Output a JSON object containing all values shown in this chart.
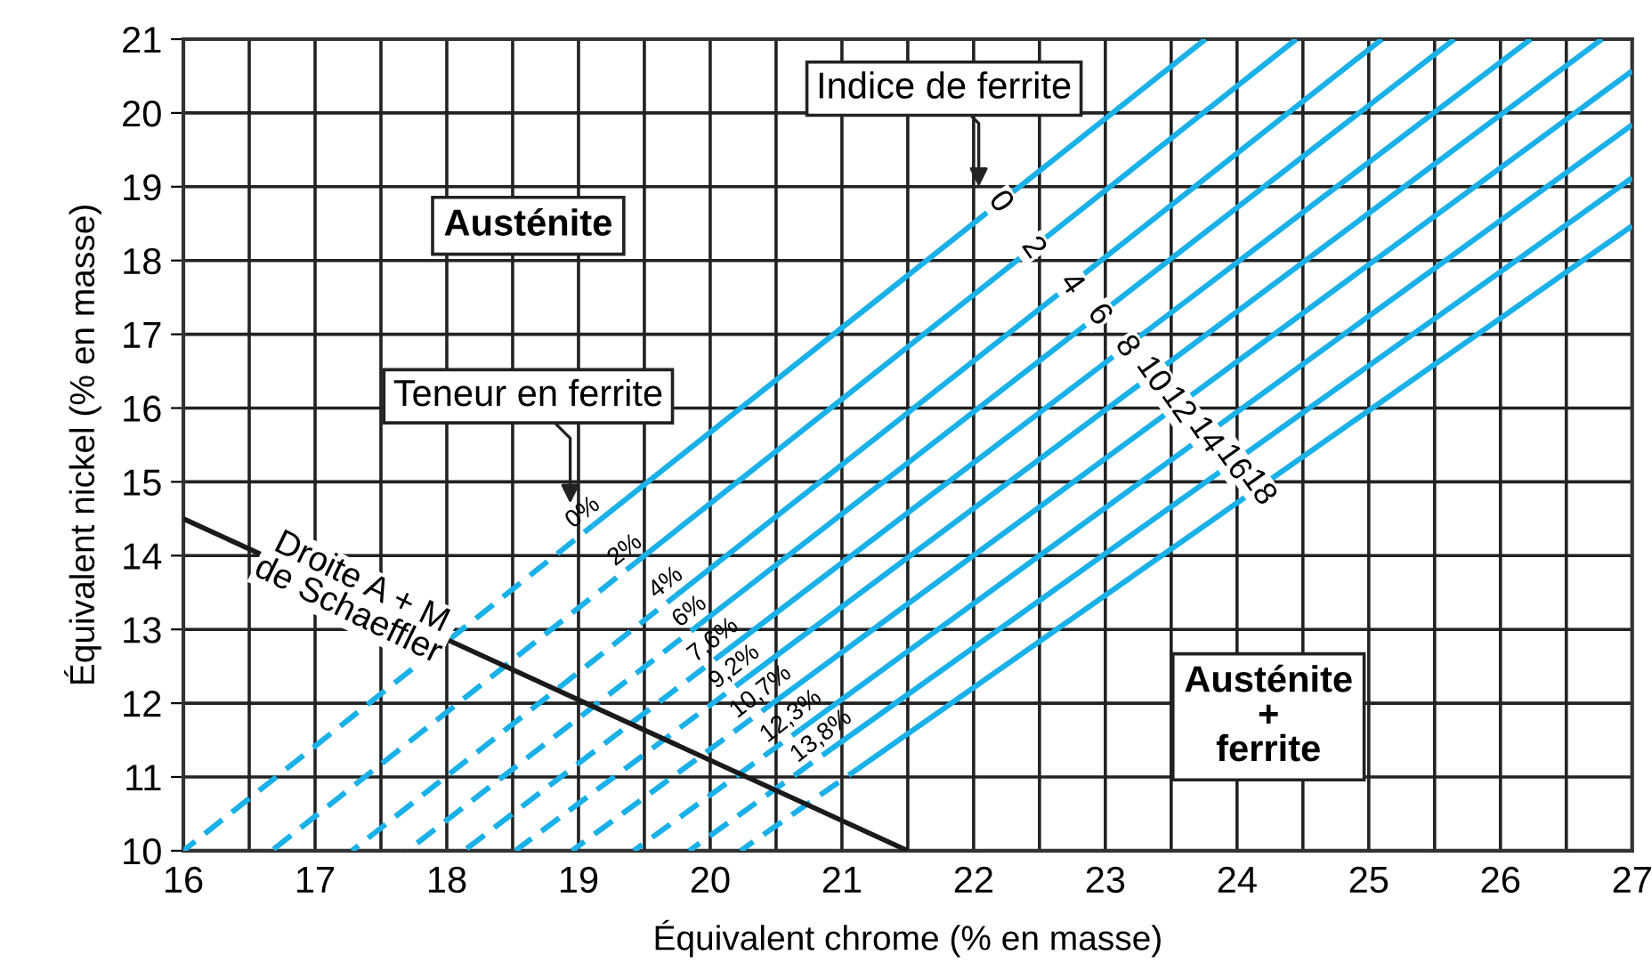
{
  "chart_data": {
    "type": "line",
    "xlabel": "Équivalent chrome (% en masse)",
    "ylabel": "Équivalent nickel (% en masse)",
    "xlim": [
      16,
      27
    ],
    "ylim": [
      10,
      21
    ],
    "xticks": [
      16,
      {
        "value": 16.5,
        "label": null
      },
      17,
      {
        "value": 17.5,
        "label": null
      },
      18,
      {
        "value": 18.5,
        "label": null
      },
      19,
      {
        "value": 19.5,
        "label": null
      },
      20,
      {
        "value": 20.5,
        "label": null
      },
      21,
      {
        "value": 21.5,
        "label": null
      },
      22,
      {
        "value": 22.5,
        "label": null
      },
      23,
      {
        "value": 23.5,
        "label": null
      },
      24,
      {
        "value": 24.5,
        "label": null
      },
      25,
      {
        "value": 25.5,
        "label": null
      },
      26,
      {
        "value": 26.5,
        "label": null
      },
      27
    ],
    "yticks": [
      10,
      11,
      12,
      13,
      14,
      15,
      16,
      17,
      18,
      19,
      20,
      21
    ],
    "grid": true,
    "legend": false,
    "series": [
      {
        "color": "#1ab0e8",
        "line_style": "dashed",
        "x": [
          16,
          19.11
        ],
        "values": [
          10,
          14.41
        ]
      },
      {
        "color": "#1ab0e8",
        "line_style": "solid",
        "x": [
          19.11,
          23.76
        ],
        "values": [
          14.41,
          21
        ]
      },
      {
        "color": "#1ab0e8",
        "line_style": "dashed",
        "x": [
          16.67,
          19.43
        ],
        "values": [
          10,
          13.9
        ]
      },
      {
        "color": "#1ab0e8",
        "line_style": "solid",
        "x": [
          19.43,
          24.45
        ],
        "values": [
          13.9,
          21
        ]
      },
      {
        "color": "#1ab0e8",
        "line_style": "dashed",
        "x": [
          17.28,
          19.74
        ],
        "values": [
          10,
          13.46
        ]
      },
      {
        "color": "#1ab0e8",
        "line_style": "solid",
        "x": [
          19.74,
          25.1
        ],
        "values": [
          13.46,
          21
        ]
      },
      {
        "color": "#1ab0e8",
        "line_style": "dashed",
        "x": [
          17.7,
          19.92
        ],
        "values": [
          10,
          13.07
        ]
      },
      {
        "color": "#1ab0e8",
        "line_style": "solid",
        "x": [
          19.92,
          25.65
        ],
        "values": [
          13.07,
          21
        ]
      },
      {
        "color": "#1ab0e8",
        "line_style": "dashed",
        "x": [
          18.13,
          20.1
        ],
        "values": [
          10,
          12.68
        ]
      },
      {
        "color": "#1ab0e8",
        "line_style": "solid",
        "x": [
          20.1,
          26.23
        ],
        "values": [
          12.68,
          21
        ]
      },
      {
        "color": "#1ab0e8",
        "line_style": "dashed",
        "x": [
          18.52,
          20.26
        ],
        "values": [
          10,
          12.32
        ]
      },
      {
        "color": "#1ab0e8",
        "line_style": "solid",
        "x": [
          20.26,
          26.77
        ],
        "values": [
          12.32,
          21
        ]
      },
      {
        "color": "#1ab0e8",
        "line_style": "dashed",
        "x": [
          18.95,
          20.46
        ],
        "values": [
          10,
          11.98
        ]
      },
      {
        "color": "#1ab0e8",
        "line_style": "solid",
        "x": [
          20.46,
          27
        ],
        "values": [
          11.98,
          20.57
        ]
      },
      {
        "color": "#1ab0e8",
        "line_style": "dashed",
        "x": [
          19.42,
          20.69
        ],
        "values": [
          10,
          11.65
        ]
      },
      {
        "color": "#1ab0e8",
        "line_style": "solid",
        "x": [
          20.69,
          27
        ],
        "values": [
          11.65,
          19.84
        ]
      },
      {
        "color": "#1ab0e8",
        "line_style": "dashed",
        "x": [
          19.84,
          20.92
        ],
        "values": [
          10,
          11.38
        ]
      },
      {
        "color": "#1ab0e8",
        "line_style": "solid",
        "x": [
          20.92,
          27
        ],
        "values": [
          11.38,
          19.12
        ]
      },
      {
        "color": "#1ab0e8",
        "line_style": "dashed",
        "x": [
          20.23,
          21.12
        ],
        "values": [
          10,
          11.11
        ]
      },
      {
        "color": "#1ab0e8",
        "line_style": "solid",
        "x": [
          21.12,
          27
        ],
        "values": [
          11.11,
          18.47
        ]
      },
      {
        "color": "#1a1a1a",
        "line_style": "solid",
        "x": [
          16,
          21.5
        ],
        "values": [
          14.5,
          10
        ]
      }
    ],
    "annotations": [
      "Austénite",
      "Teneur en ferrite",
      "Indice de ferrite",
      "Austénite\n+\nferrite",
      {
        "text": "Droite A + M\nde Schaeffler",
        "x": 17.3,
        "y": 13.44
      },
      {
        "text": "0",
        "x": 22.2,
        "y": 18.79
      },
      {
        "text": "2",
        "x": 22.45,
        "y": 18.17
      },
      {
        "text": "4",
        "x": 22.74,
        "y": 17.68
      },
      {
        "text": "6",
        "x": 22.95,
        "y": 17.26
      },
      {
        "text": "8",
        "x": 23.16,
        "y": 16.83
      },
      {
        "text": "10",
        "x": 23.36,
        "y": 16.45
      },
      {
        "text": "12",
        "x": 23.55,
        "y": 16.04
      },
      {
        "text": "14",
        "x": 23.76,
        "y": 15.63
      },
      {
        "text": "16",
        "x": 23.97,
        "y": 15.26
      },
      {
        "text": "18",
        "x": 24.16,
        "y": 14.92
      },
      {
        "text": "0%",
        "x": 19.11,
        "y": 14.41
      },
      {
        "text": "2%",
        "x": 19.43,
        "y": 13.9
      },
      {
        "text": "4%",
        "x": 19.74,
        "y": 13.46
      },
      {
        "text": "6%",
        "x": 19.92,
        "y": 13.07
      },
      {
        "text": "7,6%",
        "x": 20.1,
        "y": 12.68
      },
      {
        "text": "9,2%",
        "x": 20.26,
        "y": 12.32
      },
      {
        "text": "10,7%",
        "x": 20.46,
        "y": 11.98
      },
      {
        "text": "12,3%",
        "x": 20.69,
        "y": 11.65
      },
      {
        "text": "13,8%",
        "x": 20.92,
        "y": 11.38
      }
    ]
  }
}
